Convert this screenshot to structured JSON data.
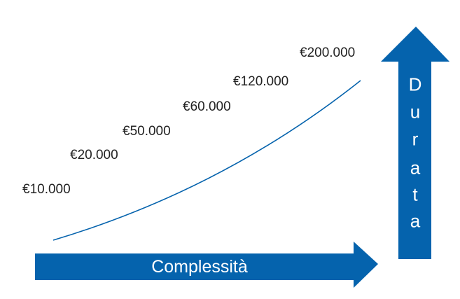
{
  "labels": [
    "€10.000",
    "€20.000",
    "€50.000",
    "€60.000",
    "€120.000",
    "€200.000"
  ],
  "x_axis_label": "Complessità",
  "y_axis_letters": [
    "D",
    "u",
    "r",
    "a",
    "t",
    "a"
  ],
  "colors": {
    "arrow": "#0563ad",
    "curve": "#0563ad",
    "text": "#222222"
  }
}
